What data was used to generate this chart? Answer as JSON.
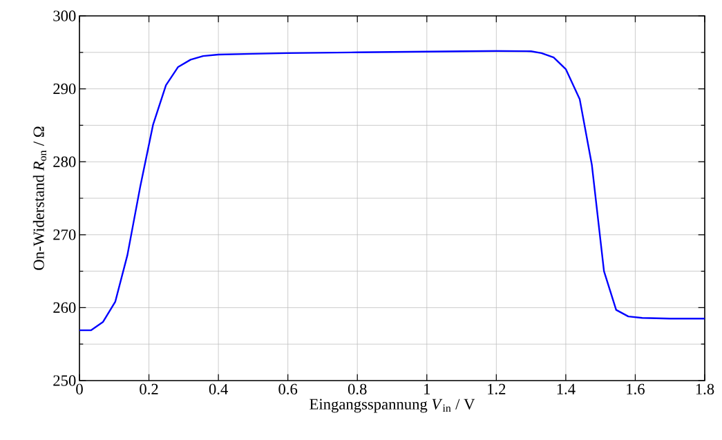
{
  "chart_data": {
    "type": "line",
    "xlabel": "Eingangsspannung *V*$_{in}$ / V",
    "ylabel": "On-Widerstand *R*$_{on}$ / Ω",
    "x": [
      0,
      0.033,
      0.068,
      0.103,
      0.138,
      0.175,
      0.212,
      0.249,
      0.284,
      0.32,
      0.356,
      0.4,
      0.5,
      0.6,
      0.8,
      1.0,
      1.2,
      1.3,
      1.33,
      1.365,
      1.4,
      1.44,
      1.475,
      1.51,
      1.545,
      1.58,
      1.62,
      1.7,
      1.8
    ],
    "series": [
      {
        "color": "#0000ff",
        "values": [
          256.9,
          256.9,
          258.05,
          260.8,
          267.2,
          276.6,
          285.1,
          290.5,
          293.0,
          294.0,
          294.5,
          294.7,
          294.8,
          294.9,
          295.0,
          295.1,
          295.2,
          295.15,
          294.9,
          294.3,
          292.7,
          288.6,
          279.6,
          265.0,
          259.7,
          258.8,
          258.6,
          258.5,
          258.5
        ]
      }
    ],
    "xlim": [
      0,
      1.8
    ],
    "ylim": [
      250,
      300
    ],
    "xticks": [
      0,
      0.2,
      0.4,
      0.6,
      0.8,
      1,
      1.2,
      1.4,
      1.6,
      1.8
    ],
    "yticks": [
      250,
      260,
      270,
      280,
      290,
      300
    ],
    "grid": true
  }
}
